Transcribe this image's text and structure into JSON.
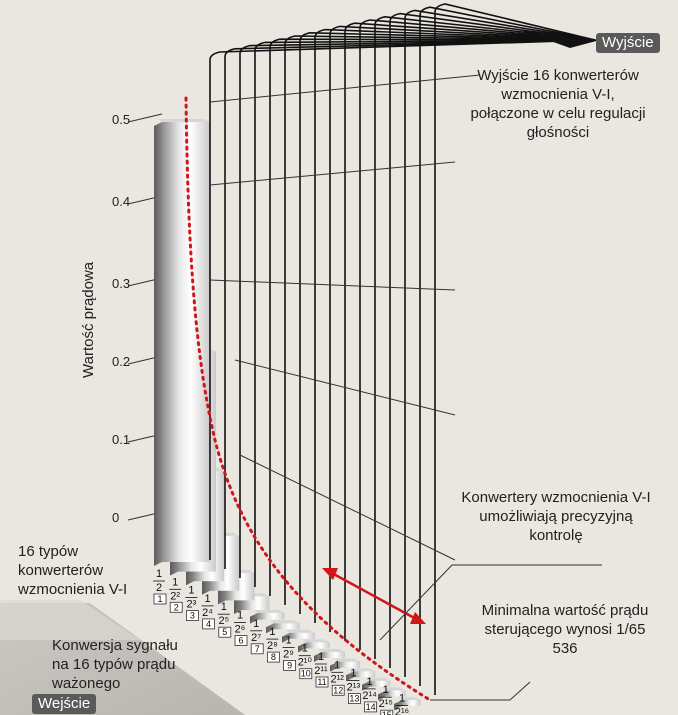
{
  "output_tag": "Wyjście",
  "input_tag": "Wejście",
  "y_axis_label": "Wartość prądowa",
  "y_ticks": [
    "0",
    "0.1",
    "0.2",
    "0.3",
    "0.4",
    "0.5"
  ],
  "callouts": {
    "outputs": "Wyjście 16 konwerterów wzmocnienia V-I, połączone w celu regulacji głośności",
    "converters": "Konwertery wzmocnienia V-I umożliwiają precyzyjną kontrolę",
    "minimum": "Minimalna wartość prądu sterującego wynosi 1/65 536",
    "types": "16 typów konwerterów wzmocnienia V-I",
    "conversion": "Konwersja sygnału na 16 typów prądu ważonego"
  },
  "fractions": {
    "numerator": "1",
    "denominators": [
      "2",
      "2²",
      "2³",
      "2⁴",
      "2⁵",
      "2⁶",
      "2⁷",
      "2⁸",
      "2⁹",
      "2¹⁰",
      "2¹¹",
      "2¹²",
      "2¹³",
      "2¹⁴",
      "2¹⁵",
      "2¹⁶"
    ],
    "indices": [
      "1",
      "2",
      "3",
      "4",
      "5",
      "6",
      "7",
      "8",
      "9",
      "10",
      "11",
      "12",
      "13",
      "14",
      "15",
      "16"
    ]
  },
  "colors": {
    "background": "#eae6e0",
    "curve": "#d0161b",
    "tag": "#5a5a5a"
  }
}
